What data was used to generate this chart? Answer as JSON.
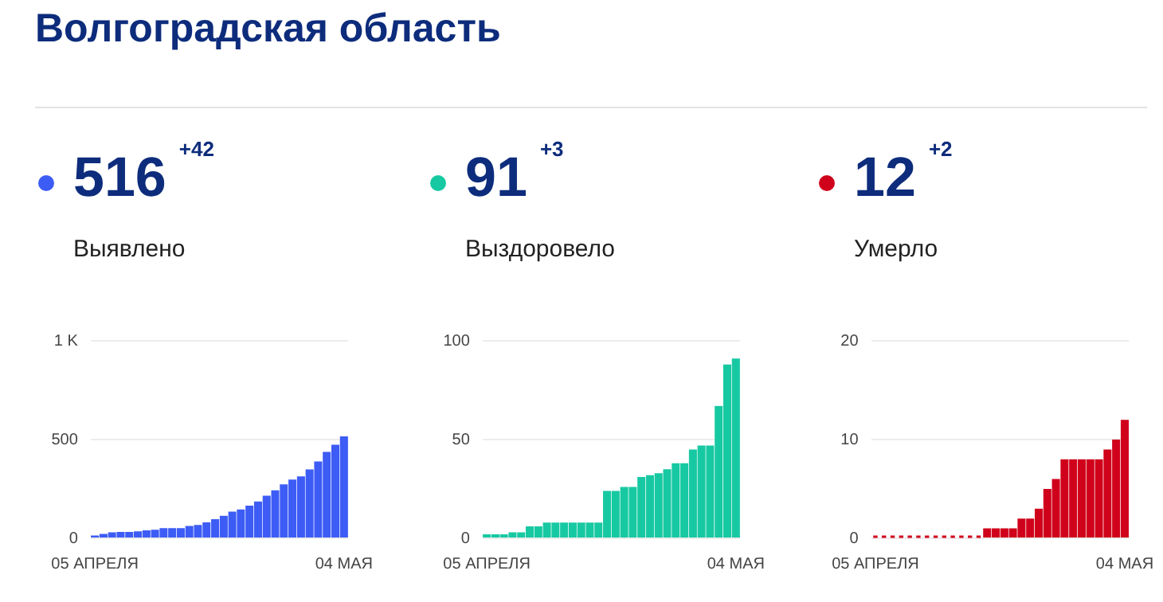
{
  "chart_data": [
    {
      "type": "bar",
      "title": "516",
      "subtitle": "+42",
      "annotations": [
        "Волгоградская область",
        "Выявлено"
      ],
      "categories": [
        "05 АПРЕЛЯ",
        null,
        null,
        null,
        null,
        null,
        null,
        null,
        null,
        null,
        null,
        null,
        null,
        null,
        null,
        null,
        null,
        null,
        null,
        null,
        null,
        null,
        null,
        null,
        null,
        null,
        null,
        null,
        null,
        "04 МАЯ"
      ],
      "series": [
        {
          "color": "#3d5cf5",
          "values": [
            14,
            22,
            30,
            32,
            32,
            35,
            40,
            43,
            51,
            51,
            51,
            62,
            68,
            81,
            97,
            114,
            135,
            146,
            165,
            186,
            216,
            243,
            273,
            297,
            314,
            349,
            389,
            438,
            474,
            516
          ]
        }
      ],
      "ylim": [
        0,
        1000
      ],
      "yticks": [
        0,
        500,
        {
          "value": 1000,
          "label": "1 K"
        }
      ],
      "grid": "y"
    },
    {
      "type": "bar",
      "title": "91",
      "subtitle": "+3",
      "annotations": [
        "Выздоровело"
      ],
      "categories": [
        "05 АПРЕЛЯ",
        null,
        null,
        null,
        null,
        null,
        null,
        null,
        null,
        null,
        null,
        null,
        null,
        null,
        null,
        null,
        null,
        null,
        null,
        null,
        null,
        null,
        null,
        null,
        null,
        null,
        null,
        null,
        null,
        "04 МАЯ"
      ],
      "series": [
        {
          "color": "#17c9a2",
          "values": [
            2,
            2,
            2,
            3,
            3,
            6,
            6,
            8,
            8,
            8,
            8,
            8,
            8,
            8,
            24,
            24,
            26,
            26,
            31,
            32,
            33,
            35,
            38,
            38,
            45,
            47,
            47,
            67,
            88,
            91
          ]
        }
      ],
      "ylim": [
        0,
        100
      ],
      "yticks": [
        0,
        50,
        100
      ],
      "grid": "y"
    },
    {
      "type": "bar",
      "title": "12",
      "subtitle": "+2",
      "annotations": [
        "Умерло"
      ],
      "categories": [
        "05 АПРЕЛЯ",
        null,
        null,
        null,
        null,
        null,
        null,
        null,
        null,
        null,
        null,
        null,
        null,
        null,
        null,
        null,
        null,
        null,
        null,
        null,
        null,
        null,
        null,
        null,
        null,
        null,
        null,
        null,
        null,
        "04 МАЯ"
      ],
      "series": [
        {
          "color": "#d0021b",
          "values": [
            0,
            0,
            0,
            0,
            0,
            0,
            0,
            0,
            0,
            0,
            0,
            0,
            0,
            1,
            1,
            1,
            1,
            2,
            2,
            3,
            5,
            6,
            8,
            8,
            8,
            8,
            8,
            9,
            10,
            12
          ]
        }
      ],
      "ylim": [
        0,
        20
      ],
      "yticks": [
        0,
        10,
        20
      ],
      "grid": "y"
    }
  ]
}
